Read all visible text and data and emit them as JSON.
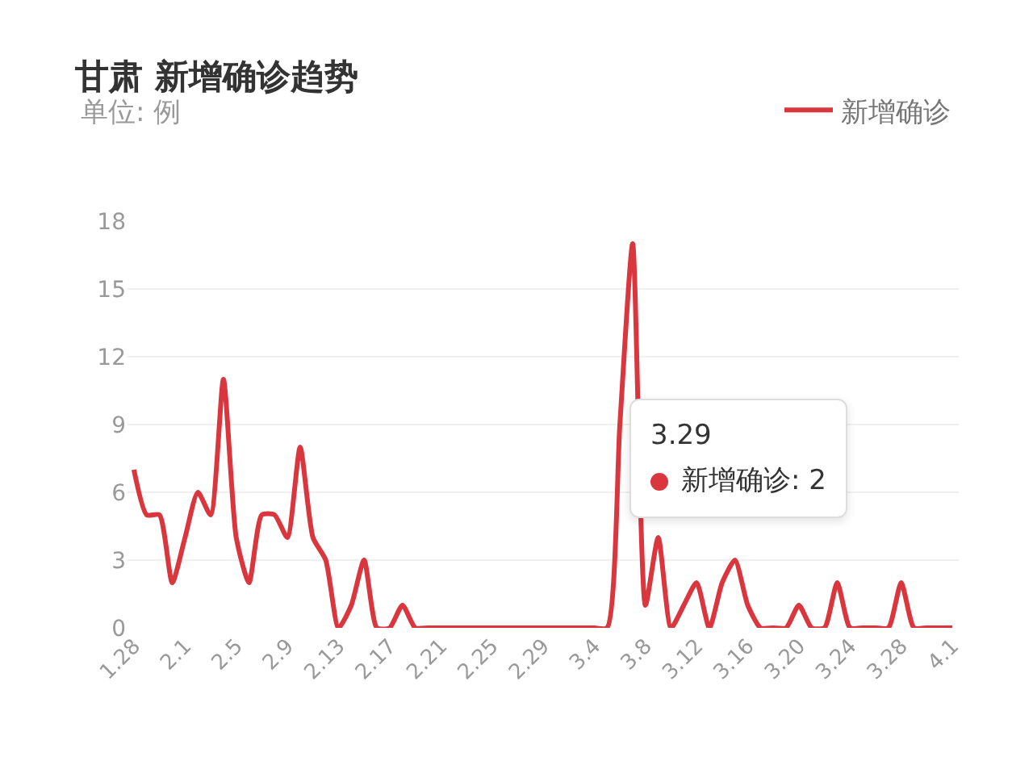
{
  "chart_data": {
    "type": "line",
    "title": "甘肃 新增确诊趋势",
    "subtitle": "单位: 例",
    "categories": [
      "1.28",
      null,
      null,
      null,
      "2.1",
      null,
      null,
      null,
      "2.5",
      null,
      null,
      null,
      "2.9",
      null,
      null,
      null,
      "2.13",
      null,
      null,
      null,
      "2.17",
      null,
      null,
      null,
      "2.21",
      null,
      null,
      null,
      "2.25",
      null,
      null,
      null,
      "2.29",
      null,
      null,
      null,
      "3.4",
      null,
      null,
      null,
      "3.8",
      null,
      null,
      null,
      "3.12",
      null,
      null,
      null,
      "3.16",
      null,
      null,
      null,
      "3.20",
      null,
      null,
      null,
      "3.24",
      null,
      null,
      null,
      "3.28",
      null,
      null,
      null,
      "4.1"
    ],
    "series": [
      {
        "name": "新增确诊",
        "color": "#d9363e",
        "values": [
          7,
          5,
          5,
          2,
          4,
          6,
          5,
          11,
          4,
          2,
          5,
          5,
          4,
          8,
          4,
          3,
          0,
          1,
          3,
          0,
          0,
          1,
          0,
          0,
          0,
          0,
          0,
          0,
          0,
          0,
          0,
          0,
          0,
          0,
          0,
          0,
          0,
          0,
          9,
          17,
          1,
          4,
          0,
          1,
          2,
          0,
          2,
          3,
          1,
          0,
          0,
          0,
          1,
          0,
          0,
          2,
          0,
          0,
          0,
          0,
          2,
          0,
          0,
          0,
          0
        ]
      }
    ],
    "ylim": [
      0,
      18
    ],
    "yticks": [
      0,
      3,
      6,
      9,
      12,
      15,
      18
    ],
    "grid": "y",
    "legend": "top right",
    "marker": "none",
    "line_style": "solid",
    "annotations": [
      "3.29",
      "新增确诊: 2"
    ]
  }
}
